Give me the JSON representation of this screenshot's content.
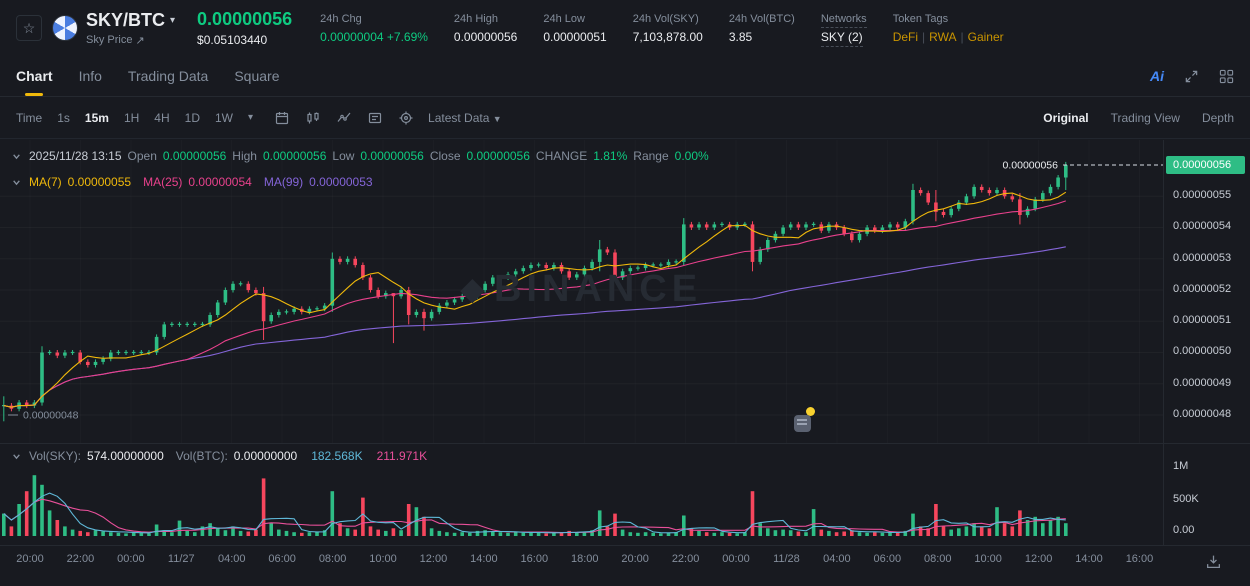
{
  "header": {
    "pair": "SKY/BTC",
    "pair_link_label": "Sky Price",
    "price": "0.00000056",
    "price_usd": "$0.05103440",
    "stats": [
      {
        "label": "24h Chg",
        "value": "0.00000004 +7.69%"
      },
      {
        "label": "24h High",
        "value": "0.00000056"
      },
      {
        "label": "24h Low",
        "value": "0.00000051"
      },
      {
        "label": "24h Vol(SKY)",
        "value": "7,103,878.00"
      },
      {
        "label": "24h Vol(BTC)",
        "value": "3.85"
      }
    ],
    "networks": {
      "label": "Networks",
      "value": "SKY (2)"
    },
    "token_tags": {
      "label": "Token Tags",
      "tags": [
        "DeFi",
        "RWA",
        "Gainer"
      ]
    }
  },
  "tabs": {
    "items": [
      "Chart",
      "Info",
      "Trading Data",
      "Square"
    ],
    "active": "Chart",
    "ai_label": "Ai"
  },
  "toolbar": {
    "time_label": "Time",
    "intervals": [
      "1s",
      "15m",
      "1H",
      "4H",
      "1D",
      "1W"
    ],
    "active_interval": "15m",
    "latest_data_label": "Latest Data",
    "views": [
      "Original",
      "Trading View",
      "Depth"
    ],
    "active_view": "Original"
  },
  "legend": {
    "datetime": "2025/11/28 13:15",
    "ohlc": [
      {
        "label": "Open",
        "value": "0.00000056"
      },
      {
        "label": "High",
        "value": "0.00000056"
      },
      {
        "label": "Low",
        "value": "0.00000056"
      },
      {
        "label": "Close",
        "value": "0.00000056"
      },
      {
        "label": "CHANGE",
        "value": "1.81%"
      },
      {
        "label": "Range",
        "value": "0.00%"
      }
    ],
    "mas": [
      {
        "label": "MA(7)",
        "value": "0.00000055",
        "color": "#f0b90b"
      },
      {
        "label": "MA(25)",
        "value": "0.00000054",
        "color": "#e8418c"
      },
      {
        "label": "MA(99)",
        "value": "0.00000053",
        "color": "#8465d8"
      }
    ]
  },
  "volume_legend": {
    "vol_sky_label": "Vol(SKY):",
    "vol_sky": "574.00000000",
    "vol_btc_label": "Vol(BTC):",
    "vol_btc": "0.00000000",
    "ma_fast": "182.568K",
    "ma_slow": "211.971K"
  },
  "price_axis": {
    "labels": [
      "0.00000055",
      "0.00000054",
      "0.00000053",
      "0.00000052",
      "0.00000051",
      "0.00000050",
      "0.00000049",
      "0.00000048"
    ],
    "current": "0.00000056",
    "low_marker": "0.00000048"
  },
  "volume_axis": [
    "1M",
    "500K",
    "0.00"
  ],
  "time_axis": [
    "20:00",
    "22:00",
    "00:00",
    "11/27",
    "04:00",
    "06:00",
    "08:00",
    "10:00",
    "12:00",
    "14:00",
    "16:00",
    "18:00",
    "20:00",
    "22:00",
    "00:00",
    "11/28",
    "04:00",
    "06:00",
    "08:00",
    "10:00",
    "12:00",
    "14:00",
    "16:00"
  ],
  "watermark": "BINANCE",
  "colors": {
    "up": "#2ebd85",
    "down": "#f6465d",
    "text_green": "#0ecb81",
    "accent_yellow": "#f0b90b",
    "ma7": "#f0b90b",
    "ma25": "#e8418c",
    "ma99": "#8465d8",
    "vol_ma_fast": "#5fb8d8",
    "vol_ma_slow": "#e8509a",
    "tag_gold": "#c99400"
  },
  "chart_data": {
    "type": "candlestick",
    "interval": "15m",
    "scale_note": "price values are in 1e-9 BTC units (560 = 0.00000056)",
    "first_open": 483,
    "last_price_e9": 560,
    "low_marker_e9": 480,
    "y_range_e9": [
      472,
      568
    ],
    "closes": [
      483,
      482,
      484,
      483,
      484,
      500,
      500,
      499,
      500,
      500,
      497,
      496,
      497,
      498,
      500,
      500,
      500,
      500,
      500,
      500,
      505,
      509,
      509,
      509,
      509,
      509,
      509,
      512,
      516,
      520,
      522,
      522,
      520,
      519,
      510,
      512,
      513,
      513,
      514,
      513,
      514,
      514,
      515,
      530,
      529,
      530,
      528,
      524,
      520,
      518,
      519,
      518,
      520,
      512,
      513,
      511,
      513,
      515,
      516,
      517,
      518,
      518,
      520,
      522,
      524,
      524,
      525,
      526,
      527,
      528,
      528,
      527,
      528,
      526,
      524,
      525,
      527,
      529,
      533,
      532,
      524,
      526,
      527,
      527,
      528,
      528,
      528,
      529,
      529,
      541,
      540,
      541,
      540,
      541,
      541,
      540,
      541,
      541,
      529,
      533,
      536,
      538,
      540,
      541,
      540,
      541,
      541,
      539,
      541,
      540,
      538,
      536,
      538,
      540,
      539,
      540,
      541,
      540,
      542,
      552,
      551,
      548,
      545,
      544,
      546,
      548,
      550,
      553,
      552,
      551,
      552,
      550,
      549,
      544,
      546,
      549,
      551,
      553,
      556,
      560
    ],
    "wick_overrides": {
      "0": [
        486,
        478
      ],
      "5": [
        502,
        483
      ],
      "34": [
        521,
        504
      ],
      "43": [
        532,
        513
      ],
      "51": [
        519,
        503
      ],
      "53": [
        521,
        509
      ],
      "55": [
        514,
        507
      ],
      "78": [
        536,
        526
      ],
      "80": [
        533,
        523
      ],
      "89": [
        543,
        528
      ],
      "98": [
        542,
        526
      ],
      "119": [
        554,
        541
      ],
      "122": [
        552,
        542
      ],
      "133": [
        551,
        541
      ],
      "139": [
        561,
        552
      ]
    },
    "volumes_k": [
      350,
      150,
      500,
      700,
      950,
      800,
      400,
      250,
      150,
      100,
      80,
      60,
      90,
      70,
      60,
      50,
      40,
      60,
      50,
      40,
      180,
      90,
      60,
      240,
      80,
      60,
      150,
      200,
      120,
      90,
      150,
      80,
      70,
      100,
      900,
      200,
      100,
      80,
      60,
      50,
      60,
      70,
      90,
      700,
      200,
      120,
      100,
      600,
      150,
      100,
      80,
      120,
      90,
      500,
      450,
      300,
      120,
      80,
      60,
      50,
      60,
      50,
      80,
      90,
      70,
      60,
      50,
      60,
      50,
      60,
      50,
      40,
      50,
      60,
      80,
      60,
      70,
      90,
      400,
      150,
      350,
      100,
      60,
      50,
      60,
      50,
      40,
      50,
      60,
      320,
      120,
      80,
      60,
      50,
      60,
      50,
      40,
      60,
      700,
      200,
      120,
      90,
      100,
      90,
      70,
      60,
      420,
      100,
      80,
      60,
      70,
      90,
      60,
      50,
      60,
      50,
      60,
      50,
      80,
      350,
      150,
      120,
      500,
      150,
      100,
      120,
      150,
      200,
      150,
      120,
      450,
      200,
      150,
      400,
      250,
      300,
      200,
      250,
      300,
      200
    ],
    "ma_windows": {
      "ma7": 7,
      "ma25": 25,
      "ma99": 99
    },
    "vol_ma_windows": {
      "fast": 5,
      "slow": 10
    }
  }
}
